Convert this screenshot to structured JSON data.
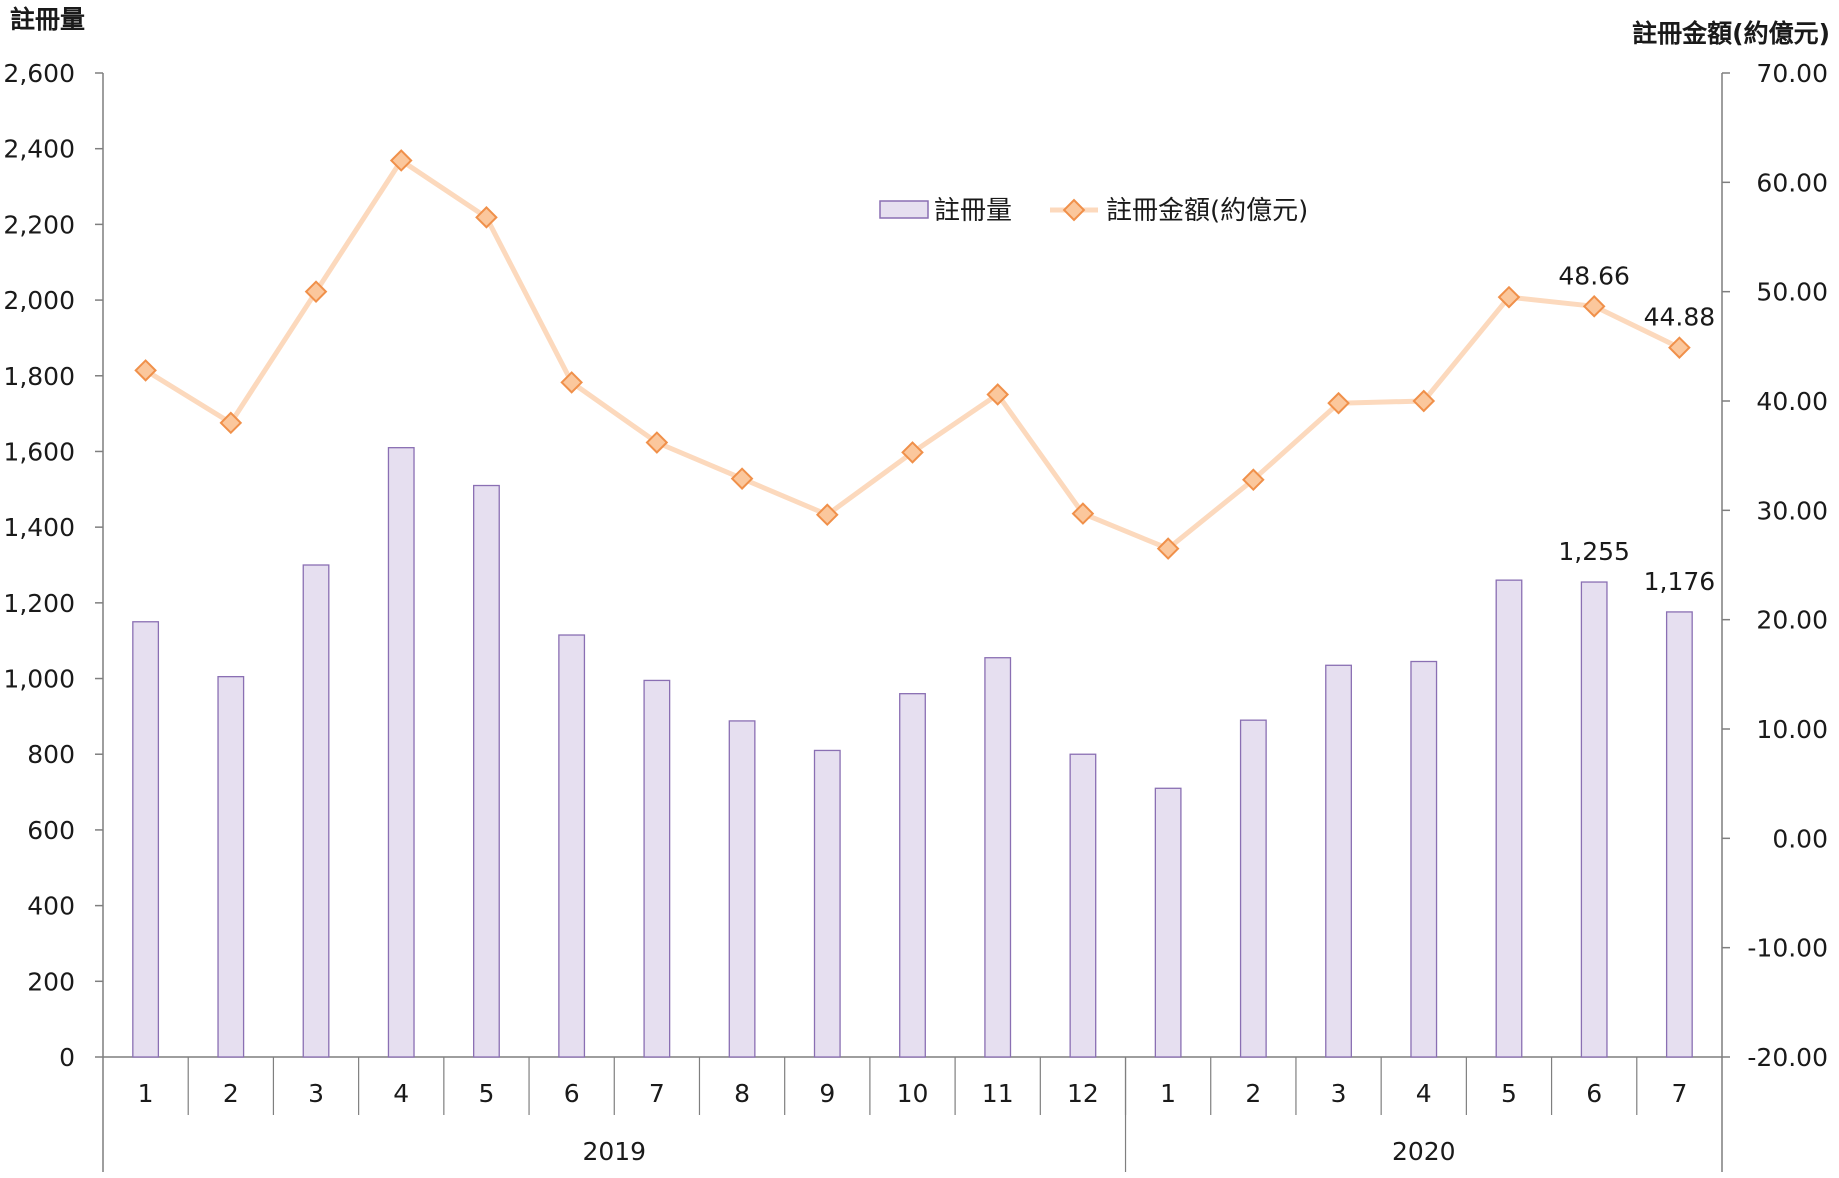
{
  "chart_data": {
    "type": "bar+line",
    "y_left_title": "註冊量",
    "y_right_title": "註冊金額(約億元)",
    "ylim_left": [
      0,
      2600
    ],
    "yticks_left": [
      "0",
      "200",
      "400",
      "600",
      "800",
      "1,000",
      "1,200",
      "1,400",
      "1,600",
      "1,800",
      "2,000",
      "2,200",
      "2,400",
      "2,600"
    ],
    "ylim_right": [
      -20,
      70
    ],
    "yticks_right": [
      "-20.00",
      "-10.00",
      "0.00",
      "10.00",
      "20.00",
      "30.00",
      "40.00",
      "50.00",
      "60.00",
      "70.00"
    ],
    "categories": [
      "1",
      "2",
      "3",
      "4",
      "5",
      "6",
      "7",
      "8",
      "9",
      "10",
      "11",
      "12",
      "1",
      "2",
      "3",
      "4",
      "5",
      "6",
      "7"
    ],
    "groups": [
      {
        "label": "2019",
        "count": 12
      },
      {
        "label": "2020",
        "count": 7
      }
    ],
    "series": [
      {
        "name": "註冊量",
        "type": "bar",
        "axis": "left",
        "color": "#e6dff0",
        "stroke": "#8a6fb3",
        "values": [
          1150,
          1005,
          1300,
          1610,
          1510,
          1115,
          995,
          888,
          810,
          960,
          1055,
          800,
          710,
          890,
          1035,
          1045,
          1260,
          1255,
          1176
        ]
      },
      {
        "name": "註冊金額(約億元)",
        "type": "line",
        "axis": "right",
        "color": "#fcd9bd",
        "marker_fill": "#fbc79c",
        "marker_stroke": "#f0904a",
        "values": [
          42.8,
          38.0,
          50.0,
          62.0,
          56.8,
          41.7,
          36.2,
          32.9,
          29.6,
          35.3,
          40.6,
          29.7,
          26.5,
          32.8,
          39.8,
          40.0,
          49.5,
          48.66,
          44.88
        ]
      }
    ],
    "data_labels": [
      {
        "series": 0,
        "index": 17,
        "text": "1,255"
      },
      {
        "series": 0,
        "index": 18,
        "text": "1,176"
      },
      {
        "series": 1,
        "index": 17,
        "text": "48.66"
      },
      {
        "series": 1,
        "index": 18,
        "text": "44.88"
      }
    ],
    "legend": {
      "placement": "top-center"
    },
    "grid": false
  }
}
